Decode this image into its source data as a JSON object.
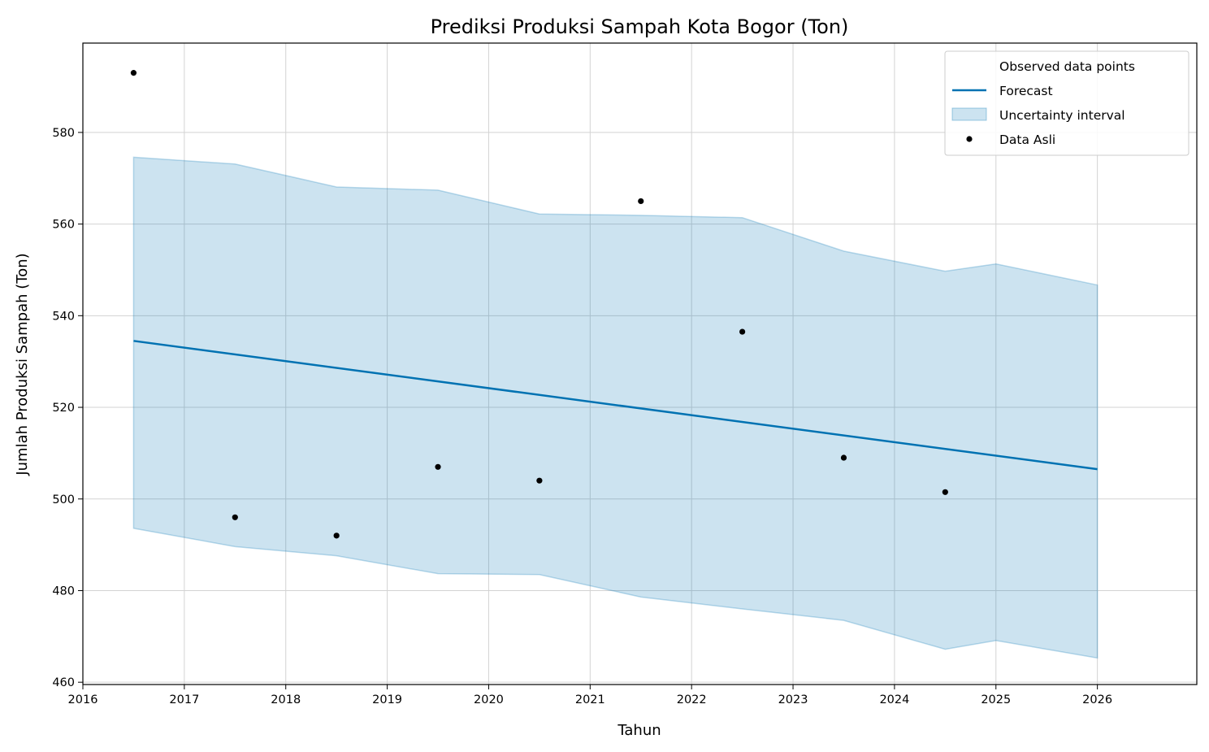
{
  "chart_data": {
    "type": "line",
    "title": "Prediksi Produksi Sampah Kota Bogor (Ton)",
    "xlabel": "Tahun",
    "ylabel": "Jumlah Produksi Sampah (Ton)",
    "xlim": [
      2016.0,
      2026.98
    ],
    "ylim": [
      459.5,
      599.5
    ],
    "x_ticks": [
      "2016",
      "2017",
      "2018",
      "2019",
      "2020",
      "2021",
      "2022",
      "2023",
      "2024",
      "2025",
      "2026"
    ],
    "y_ticks": [
      "460",
      "480",
      "500",
      "520",
      "540",
      "560",
      "580"
    ],
    "grid": true,
    "legend_position": "top-right",
    "legend": [
      "Observed data points",
      "Forecast",
      "Uncertainty interval",
      "Data Asli"
    ],
    "series": [
      {
        "name": "Forecast",
        "color": "#0072b2",
        "x": [
          2016.5,
          2026.0
        ],
        "y": [
          534.5,
          506.5
        ]
      },
      {
        "name": "Uncertainty interval",
        "color": "#0072b2",
        "x": [
          2016.5,
          2017.5,
          2018.5,
          2019.5,
          2020.5,
          2021.5,
          2022.5,
          2023.5,
          2024.5,
          2025.0,
          2026.0
        ],
        "upper": [
          574.6,
          573.1,
          568.1,
          567.4,
          562.2,
          561.9,
          561.4,
          554.1,
          549.7,
          551.3,
          546.7
        ],
        "lower": [
          493.6,
          489.6,
          487.6,
          483.7,
          483.5,
          478.6,
          476.0,
          473.5,
          467.2,
          469.1,
          465.3
        ]
      },
      {
        "name": "Data Asli",
        "color": "#000000",
        "x": [
          2016.5,
          2017.5,
          2018.5,
          2019.5,
          2020.5,
          2021.5,
          2022.5,
          2023.5,
          2024.5
        ],
        "y": [
          593.0,
          496.0,
          492.0,
          507.0,
          504.0,
          565.0,
          536.5,
          509.0,
          501.5
        ]
      }
    ]
  }
}
